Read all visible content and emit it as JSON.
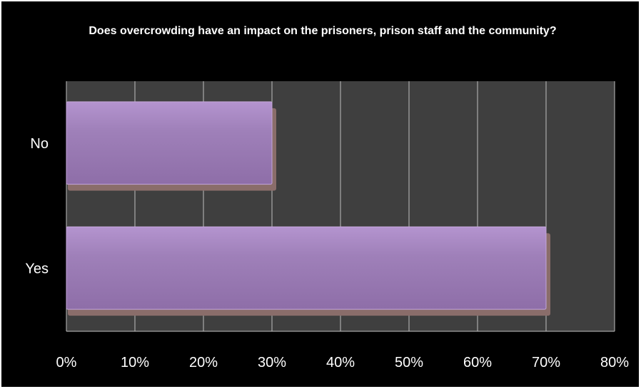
{
  "chart_data": {
    "type": "bar",
    "orientation": "horizontal",
    "title": "Does overcrowding have an impact on the prisoners, prison staff and the community?",
    "categories": [
      "No",
      "Yes"
    ],
    "values": [
      0.3,
      0.7
    ],
    "xlim": [
      0,
      0.8
    ],
    "x_ticks": [
      0,
      0.1,
      0.2,
      0.3,
      0.4,
      0.5,
      0.6,
      0.7,
      0.8
    ],
    "x_tick_labels": [
      "0%",
      "10%",
      "20%",
      "30%",
      "40%",
      "50%",
      "60%",
      "70%",
      "80%"
    ],
    "xlabel": "",
    "ylabel": "",
    "grid": true,
    "legend": "none",
    "colors": {
      "background": "#000000",
      "plot_area": "#3f3f3f",
      "gridline": "#bfbfbf",
      "bar_face": "#9c7cb6",
      "bar_side": "#8a6d6a",
      "text": "#ffffff"
    }
  }
}
